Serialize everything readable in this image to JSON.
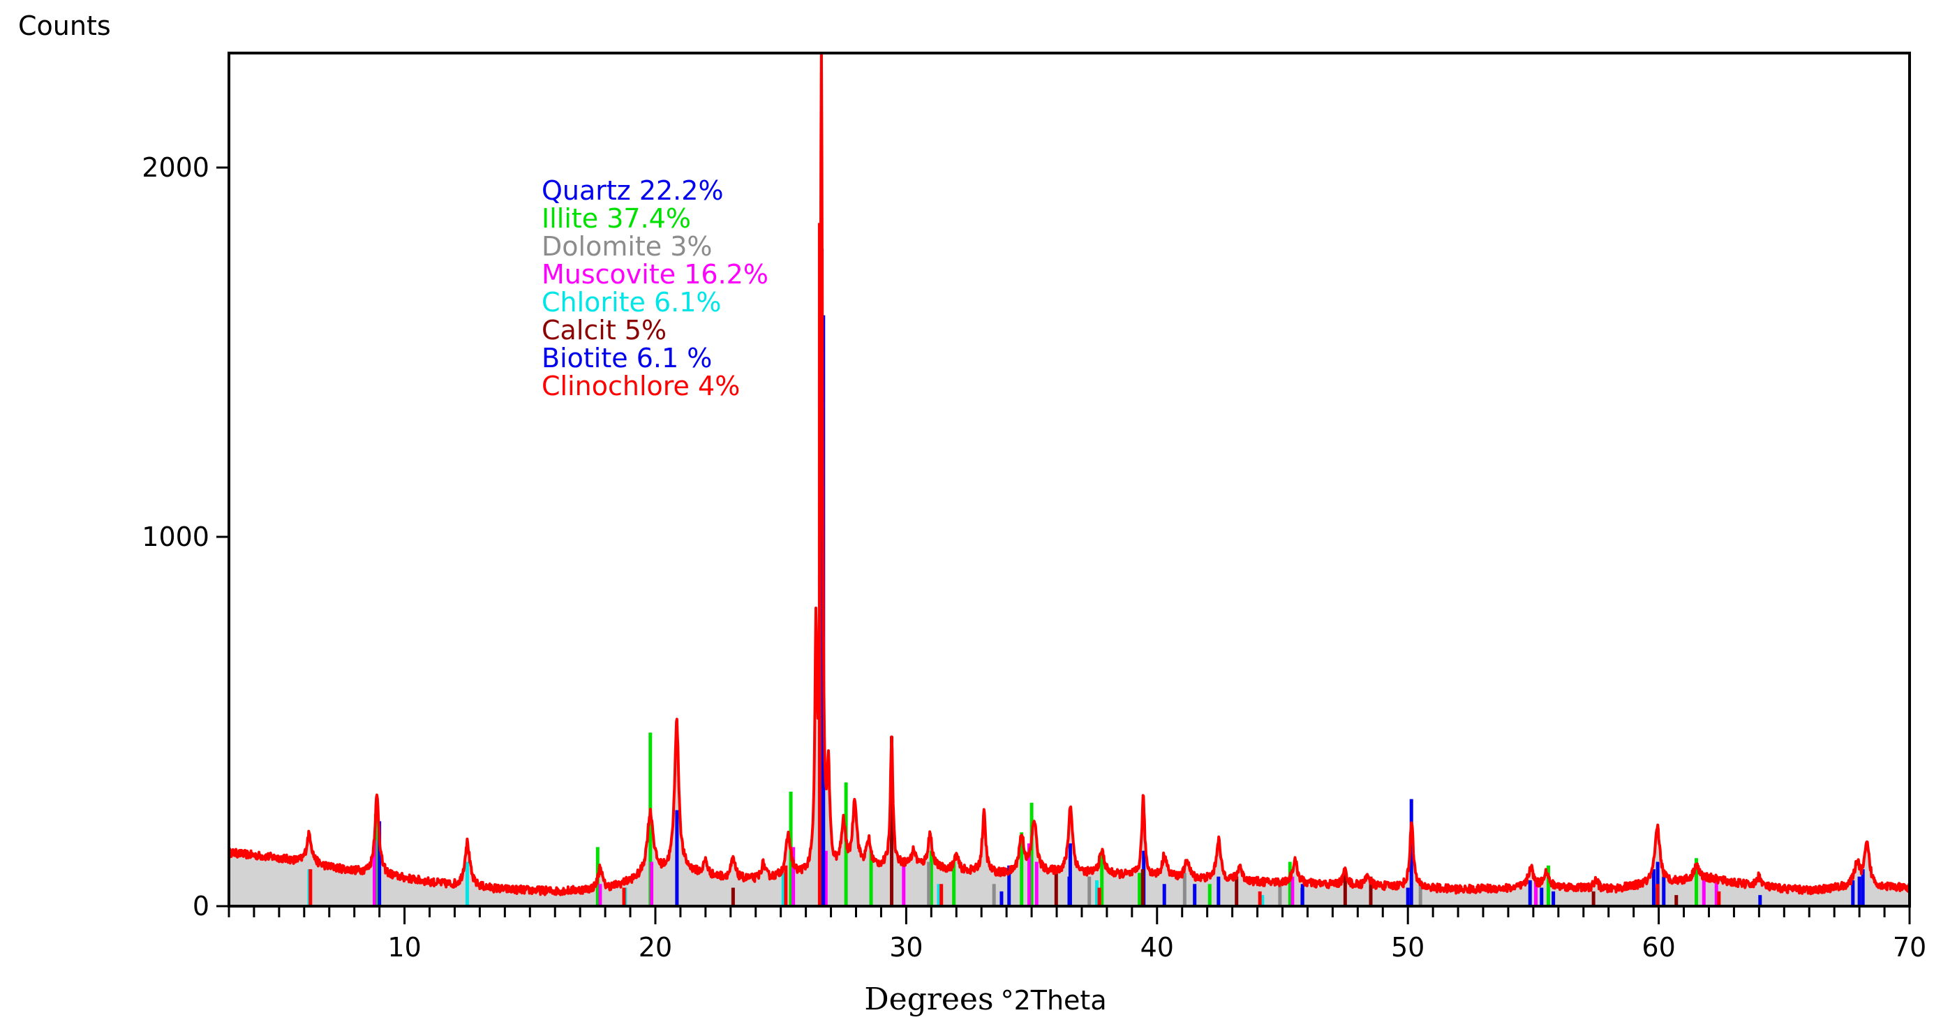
{
  "chart_data": {
    "type": "line",
    "title": "",
    "ylabel": "Counts",
    "xlabel_main": "Degrees",
    "xlabel_unit": "°2Theta",
    "xlim": [
      3,
      70
    ],
    "ylim": [
      0,
      2310
    ],
    "x_ticks": [
      10,
      20,
      30,
      40,
      50,
      60,
      70
    ],
    "y_ticks": [
      0,
      1000,
      2000
    ],
    "grid": false,
    "legend": {
      "placement": "top-left-inside",
      "entries": [
        {
          "label": "Quartz 22.2%",
          "color": "#0000ee"
        },
        {
          "label": "Illite 37.4%",
          "color": "#00e000"
        },
        {
          "label": "Dolomite 3%",
          "color": "#8c8c8c"
        },
        {
          "label": "Muscovite 16.2%",
          "color": "#ff00ff"
        },
        {
          "label": "Chlorite 6.1%",
          "color": "#00e6e6"
        },
        {
          "label": "Calcit 5%",
          "color": "#8b0000"
        },
        {
          "label": "Biotite 6.1 %",
          "color": "#0000ee"
        },
        {
          "label": "Clinochlore 4%",
          "color": "#ff0000"
        }
      ]
    },
    "pattern": {
      "color": "#ff0000",
      "fill_color": "#d3d3d3",
      "background": [
        [
          3,
          145
        ],
        [
          5,
          130
        ],
        [
          7,
          105
        ],
        [
          10,
          75
        ],
        [
          12,
          55
        ],
        [
          14,
          45
        ],
        [
          16,
          40
        ],
        [
          18,
          45
        ],
        [
          19.5,
          75
        ],
        [
          21,
          100
        ],
        [
          22,
          80
        ],
        [
          24,
          70
        ],
        [
          26,
          80
        ],
        [
          28,
          100
        ],
        [
          30,
          110
        ],
        [
          32,
          95
        ],
        [
          34,
          85
        ],
        [
          36,
          90
        ],
        [
          38,
          85
        ],
        [
          40,
          80
        ],
        [
          42,
          72
        ],
        [
          44,
          65
        ],
        [
          46,
          60
        ],
        [
          48,
          55
        ],
        [
          50,
          52
        ],
        [
          52,
          45
        ],
        [
          54,
          48
        ],
        [
          56,
          52
        ],
        [
          58,
          45
        ],
        [
          60,
          62
        ],
        [
          62,
          75
        ],
        [
          64,
          52
        ],
        [
          66,
          42
        ],
        [
          68,
          55
        ],
        [
          70,
          48
        ]
      ],
      "peaks": [
        [
          6.2,
          80,
          0.12
        ],
        [
          8.9,
          210,
          0.1
        ],
        [
          12.5,
          120,
          0.12
        ],
        [
          17.8,
          60,
          0.1
        ],
        [
          19.8,
          170,
          0.15
        ],
        [
          20.85,
          400,
          0.1
        ],
        [
          22.0,
          40,
          0.1
        ],
        [
          23.1,
          50,
          0.1
        ],
        [
          24.3,
          40,
          0.1
        ],
        [
          25.3,
          110,
          0.12
        ],
        [
          26.4,
          600,
          0.05
        ],
        [
          26.62,
          2200,
          0.05
        ],
        [
          26.9,
          250,
          0.06
        ],
        [
          27.5,
          120,
          0.1
        ],
        [
          27.95,
          180,
          0.1
        ],
        [
          28.5,
          70,
          0.1
        ],
        [
          29.42,
          350,
          0.06
        ],
        [
          30.3,
          40,
          0.1
        ],
        [
          30.95,
          90,
          0.1
        ],
        [
          32.0,
          40,
          0.1
        ],
        [
          33.1,
          160,
          0.08
        ],
        [
          34.6,
          100,
          0.12
        ],
        [
          35.1,
          140,
          0.12
        ],
        [
          36.55,
          180,
          0.1
        ],
        [
          37.8,
          60,
          0.12
        ],
        [
          39.45,
          210,
          0.07
        ],
        [
          40.3,
          60,
          0.1
        ],
        [
          41.2,
          50,
          0.1
        ],
        [
          42.45,
          110,
          0.1
        ],
        [
          43.3,
          40,
          0.1
        ],
        [
          45.5,
          60,
          0.12
        ],
        [
          47.5,
          40,
          0.1
        ],
        [
          48.4,
          30,
          0.1
        ],
        [
          50.15,
          180,
          0.08
        ],
        [
          54.9,
          55,
          0.12
        ],
        [
          55.5,
          40,
          0.12
        ],
        [
          57.5,
          25,
          0.1
        ],
        [
          59.95,
          150,
          0.12
        ],
        [
          61.5,
          40,
          0.12
        ],
        [
          64.0,
          30,
          0.1
        ],
        [
          67.9,
          60,
          0.12
        ],
        [
          68.3,
          110,
          0.12
        ]
      ]
    },
    "phases": [
      {
        "name": "Quartz",
        "color": "#0000ee",
        "sticks": [
          [
            20.86,
            260
          ],
          [
            26.64,
            1780
          ],
          [
            36.54,
            170
          ],
          [
            39.47,
            150
          ],
          [
            40.29,
            60
          ],
          [
            42.45,
            80
          ],
          [
            45.79,
            50
          ],
          [
            50.14,
            290
          ],
          [
            54.87,
            70
          ],
          [
            55.33,
            50
          ],
          [
            59.96,
            120
          ],
          [
            64.04,
            30
          ],
          [
            67.74,
            70
          ],
          [
            68.14,
            100
          ]
        ]
      },
      {
        "name": "Illite",
        "color": "#00e000",
        "sticks": [
          [
            8.85,
            250
          ],
          [
            17.7,
            160
          ],
          [
            19.8,
            470
          ],
          [
            25.4,
            310
          ],
          [
            27.6,
            335
          ],
          [
            28.6,
            150
          ],
          [
            31.0,
            150
          ],
          [
            31.9,
            120
          ],
          [
            34.6,
            200
          ],
          [
            35.0,
            280
          ],
          [
            37.8,
            150
          ],
          [
            39.3,
            90
          ],
          [
            42.1,
            60
          ],
          [
            45.3,
            120
          ],
          [
            55.6,
            110
          ],
          [
            61.5,
            130
          ]
        ]
      },
      {
        "name": "Dolomite",
        "color": "#8c8c8c",
        "sticks": [
          [
            30.9,
            120
          ],
          [
            33.5,
            60
          ],
          [
            37.3,
            80
          ],
          [
            41.1,
            90
          ],
          [
            44.9,
            60
          ],
          [
            50.5,
            70
          ]
        ]
      },
      {
        "name": "Muscovite",
        "color": "#ff00ff",
        "sticks": [
          [
            8.8,
            180
          ],
          [
            17.8,
            60
          ],
          [
            19.85,
            120
          ],
          [
            25.5,
            160
          ],
          [
            26.8,
            150
          ],
          [
            29.9,
            110
          ],
          [
            34.9,
            170
          ],
          [
            35.2,
            120
          ],
          [
            45.4,
            80
          ],
          [
            55.1,
            70
          ],
          [
            61.8,
            90
          ],
          [
            62.3,
            80
          ]
        ]
      },
      {
        "name": "Chlorite",
        "color": "#00e6e6",
        "sticks": [
          [
            6.2,
            100
          ],
          [
            12.5,
            120
          ],
          [
            18.8,
            50
          ],
          [
            25.1,
            90
          ],
          [
            31.3,
            60
          ],
          [
            37.6,
            70
          ],
          [
            44.2,
            30
          ],
          [
            59.9,
            50
          ]
        ]
      },
      {
        "name": "Calcit",
        "color": "#8b0000",
        "sticks": [
          [
            23.1,
            50
          ],
          [
            29.42,
            460
          ],
          [
            35.98,
            90
          ],
          [
            39.43,
            100
          ],
          [
            43.17,
            80
          ],
          [
            47.5,
            90
          ],
          [
            48.52,
            80
          ],
          [
            57.4,
            40
          ],
          [
            60.7,
            30
          ]
        ]
      },
      {
        "name": "Biotite",
        "color": "#0000ee",
        "sticks": [
          [
            9.0,
            230
          ],
          [
            26.7,
            1600
          ],
          [
            33.8,
            40
          ],
          [
            34.1,
            110
          ],
          [
            36.5,
            80
          ],
          [
            41.5,
            60
          ],
          [
            45.8,
            60
          ],
          [
            50.0,
            50
          ],
          [
            55.8,
            40
          ],
          [
            59.8,
            100
          ],
          [
            60.2,
            80
          ],
          [
            68.0,
            80
          ]
        ]
      },
      {
        "name": "Clinochlore",
        "color": "#ff0000",
        "sticks": [
          [
            6.25,
            100
          ],
          [
            18.75,
            50
          ],
          [
            25.2,
            110
          ],
          [
            26.55,
            1850
          ],
          [
            31.4,
            60
          ],
          [
            37.7,
            50
          ],
          [
            44.1,
            40
          ],
          [
            59.95,
            60
          ],
          [
            62.4,
            40
          ]
        ]
      }
    ]
  }
}
